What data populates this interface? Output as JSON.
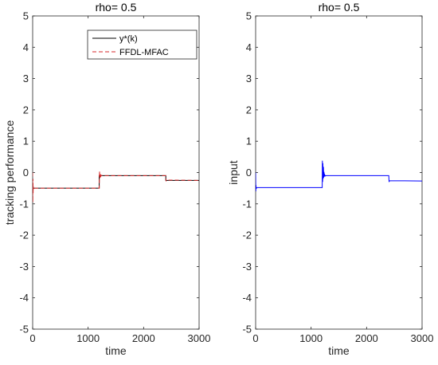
{
  "chart_data": [
    {
      "type": "line",
      "title": "rho= 0.5",
      "xlabel": "time",
      "ylabel": "tracking performance",
      "xlim": [
        0,
        3000
      ],
      "ylim": [
        -5,
        5
      ],
      "xticks": [
        0,
        1000,
        2000,
        3000
      ],
      "yticks": [
        -5,
        -4,
        -3,
        -2,
        -1,
        0,
        1,
        2,
        3,
        4,
        5
      ],
      "grid": false,
      "legend": "top-right",
      "series": [
        {
          "name": "y*(k)",
          "color": "#000000",
          "style": "solid",
          "x": [
            0,
            1200,
            1200,
            2400,
            2400,
            3000
          ],
          "y": [
            -0.5,
            -0.5,
            -0.1,
            -0.1,
            -0.25,
            -0.25
          ]
        },
        {
          "name": "FFDL-MFAC",
          "color": "#d62728",
          "style": "dashed",
          "x": [
            0,
            3,
            6,
            9,
            12,
            20,
            40,
            1200,
            1205,
            1210,
            1215,
            1220,
            1225,
            1230,
            1240,
            1260,
            2400,
            2405,
            2410,
            3000
          ],
          "y": [
            0,
            -0.95,
            -0.2,
            -0.65,
            -0.45,
            -0.52,
            -0.5,
            -0.5,
            0.05,
            -0.18,
            -0.02,
            -0.15,
            -0.05,
            -0.12,
            -0.09,
            -0.1,
            -0.1,
            -0.28,
            -0.24,
            -0.25
          ]
        }
      ]
    },
    {
      "type": "line",
      "title": "rho= 0.5",
      "xlabel": "time",
      "ylabel": "input",
      "xlim": [
        0,
        3000
      ],
      "ylim": [
        -5,
        5
      ],
      "xticks": [
        0,
        1000,
        2000,
        3000
      ],
      "yticks": [
        -5,
        -4,
        -3,
        -2,
        -1,
        0,
        1,
        2,
        3,
        4,
        5
      ],
      "grid": false,
      "series": [
        {
          "color": "#0000ff",
          "style": "solid",
          "x": [
            0,
            3,
            6,
            10,
            20,
            1200,
            1203,
            1208,
            1212,
            1217,
            1222,
            1227,
            1232,
            1238,
            1245,
            1255,
            1270,
            1300,
            2400,
            2405,
            2412,
            3000
          ],
          "y": [
            0,
            -0.6,
            -0.4,
            -0.52,
            -0.48,
            -0.48,
            0.38,
            -0.3,
            0.3,
            -0.2,
            0.18,
            -0.16,
            0.02,
            -0.13,
            -0.07,
            -0.11,
            -0.1,
            -0.1,
            -0.1,
            -0.3,
            -0.26,
            -0.27
          ]
        }
      ]
    }
  ]
}
